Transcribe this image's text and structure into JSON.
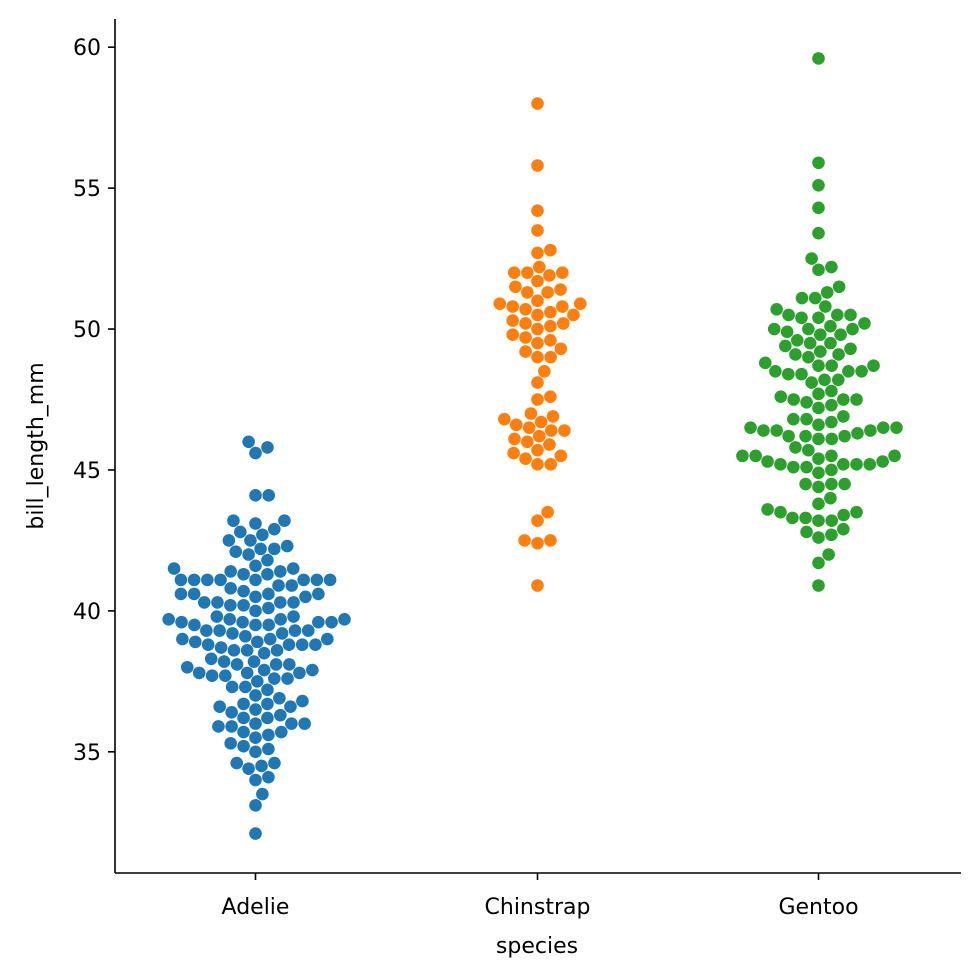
{
  "chart_data": {
    "type": "scatter",
    "subtype": "swarm",
    "title": "",
    "xlabel": "species",
    "ylabel": "bill_length_mm",
    "categories": [
      "Adelie",
      "Chinstrap",
      "Gentoo"
    ],
    "ylim": [
      30.7,
      61.0
    ],
    "yticks": [
      35,
      40,
      45,
      50,
      55,
      60
    ],
    "grid": false,
    "legend": "none",
    "colors": {
      "Adelie": "#1f77b4",
      "Chinstrap": "#ff7f0e",
      "Gentoo": "#2ca02c"
    },
    "series": [
      {
        "category": "Adelie",
        "values": [
          32.1,
          33.1,
          33.5,
          34.0,
          34.1,
          34.4,
          34.5,
          34.6,
          34.6,
          35.0,
          35.1,
          35.2,
          35.3,
          35.5,
          35.6,
          35.7,
          35.7,
          35.9,
          35.9,
          36.0,
          36.0,
          36.0,
          36.2,
          36.2,
          36.3,
          36.4,
          36.5,
          36.6,
          36.6,
          36.7,
          36.7,
          36.8,
          36.9,
          37.0,
          37.2,
          37.3,
          37.3,
          37.5,
          37.6,
          37.6,
          37.7,
          37.7,
          37.8,
          37.8,
          37.8,
          37.9,
          37.9,
          38.0,
          38.1,
          38.1,
          38.1,
          38.2,
          38.2,
          38.3,
          38.5,
          38.6,
          38.6,
          38.6,
          38.7,
          38.8,
          38.8,
          38.8,
          38.8,
          38.9,
          38.9,
          39.0,
          39.0,
          39.0,
          39.1,
          39.2,
          39.2,
          39.3,
          39.3,
          39.3,
          39.3,
          39.5,
          39.5,
          39.5,
          39.6,
          39.6,
          39.6,
          39.6,
          39.7,
          39.7,
          39.7,
          39.7,
          39.8,
          39.8,
          40.0,
          40.1,
          40.2,
          40.2,
          40.3,
          40.3,
          40.3,
          40.3,
          40.5,
          40.5,
          40.6,
          40.6,
          40.6,
          40.6,
          40.7,
          40.8,
          40.9,
          40.9,
          41.1,
          41.1,
          41.1,
          41.1,
          41.1,
          41.1,
          41.1,
          41.1,
          41.3,
          41.3,
          41.4,
          41.4,
          41.5,
          41.5,
          41.6,
          41.8,
          42.0,
          42.1,
          42.2,
          42.2,
          42.3,
          42.5,
          42.5,
          42.7,
          42.8,
          42.9,
          43.1,
          43.2,
          43.2,
          44.1,
          44.1,
          45.6,
          45.8,
          46.0
        ]
      },
      {
        "category": "Chinstrap",
        "values": [
          40.9,
          42.4,
          42.5,
          42.5,
          43.2,
          43.5,
          45.2,
          45.2,
          45.4,
          45.5,
          45.6,
          45.7,
          45.9,
          46.0,
          46.1,
          46.2,
          46.4,
          46.4,
          46.5,
          46.6,
          46.7,
          46.8,
          46.9,
          47.0,
          47.5,
          47.6,
          48.1,
          48.5,
          49.0,
          49.0,
          49.2,
          49.3,
          49.5,
          49.6,
          49.7,
          49.8,
          50.0,
          50.1,
          50.2,
          50.2,
          50.3,
          50.5,
          50.5,
          50.6,
          50.7,
          50.8,
          50.8,
          50.9,
          50.9,
          51.0,
          51.3,
          51.3,
          51.4,
          51.5,
          51.7,
          51.9,
          52.0,
          52.0,
          52.0,
          52.2,
          52.7,
          52.8,
          53.5,
          54.2,
          55.8,
          58.0
        ]
      },
      {
        "category": "Gentoo",
        "values": [
          40.9,
          41.7,
          42.0,
          42.6,
          42.7,
          42.8,
          42.9,
          43.2,
          43.2,
          43.3,
          43.3,
          43.4,
          43.5,
          43.5,
          43.6,
          43.8,
          44.0,
          44.4,
          44.5,
          44.5,
          44.5,
          44.9,
          45.0,
          45.1,
          45.1,
          45.2,
          45.2,
          45.2,
          45.2,
          45.3,
          45.3,
          45.4,
          45.5,
          45.5,
          45.5,
          45.5,
          45.7,
          45.8,
          46.1,
          46.1,
          46.2,
          46.2,
          46.2,
          46.3,
          46.4,
          46.4,
          46.4,
          46.5,
          46.5,
          46.5,
          46.6,
          46.7,
          46.8,
          46.8,
          46.9,
          47.2,
          47.3,
          47.4,
          47.5,
          47.5,
          47.5,
          47.6,
          47.7,
          47.8,
          48.1,
          48.2,
          48.2,
          48.4,
          48.4,
          48.5,
          48.5,
          48.5,
          48.7,
          48.7,
          48.7,
          48.8,
          49.0,
          49.1,
          49.1,
          49.2,
          49.3,
          49.4,
          49.5,
          49.5,
          49.6,
          49.8,
          49.8,
          49.9,
          50.0,
          50.0,
          50.0,
          50.1,
          50.2,
          50.4,
          50.4,
          50.5,
          50.5,
          50.5,
          50.7,
          50.8,
          51.1,
          51.1,
          51.3,
          51.5,
          52.1,
          52.2,
          52.5,
          53.4,
          54.3,
          55.1,
          55.9,
          59.6
        ]
      }
    ]
  }
}
